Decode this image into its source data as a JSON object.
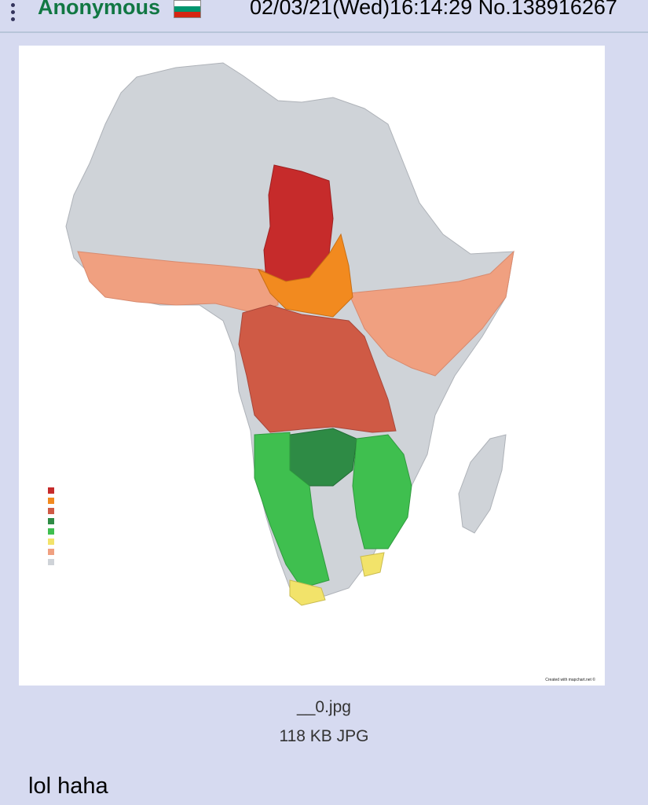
{
  "post": {
    "name": "Anonymous",
    "country_flag": "bulgaria-flag",
    "datetime": "02/03/21(Wed)16:14:29",
    "post_number": "No.138916267",
    "file": {
      "name": "__0.jpg",
      "meta": "118 KB JPG"
    },
    "comment": "lol haha",
    "image": {
      "credit": "Created with mapchart.net ©",
      "legend_colors": [
        "#c62b2b",
        "#f28a1f",
        "#cf5a45",
        "#2e8b45",
        "#3fbf4f",
        "#f2e36a",
        "#f0a080",
        "#cfd3d8"
      ]
    }
  },
  "colors": {
    "background": "#d6daf0",
    "name": "#117743",
    "border": "#b7c5d9"
  }
}
